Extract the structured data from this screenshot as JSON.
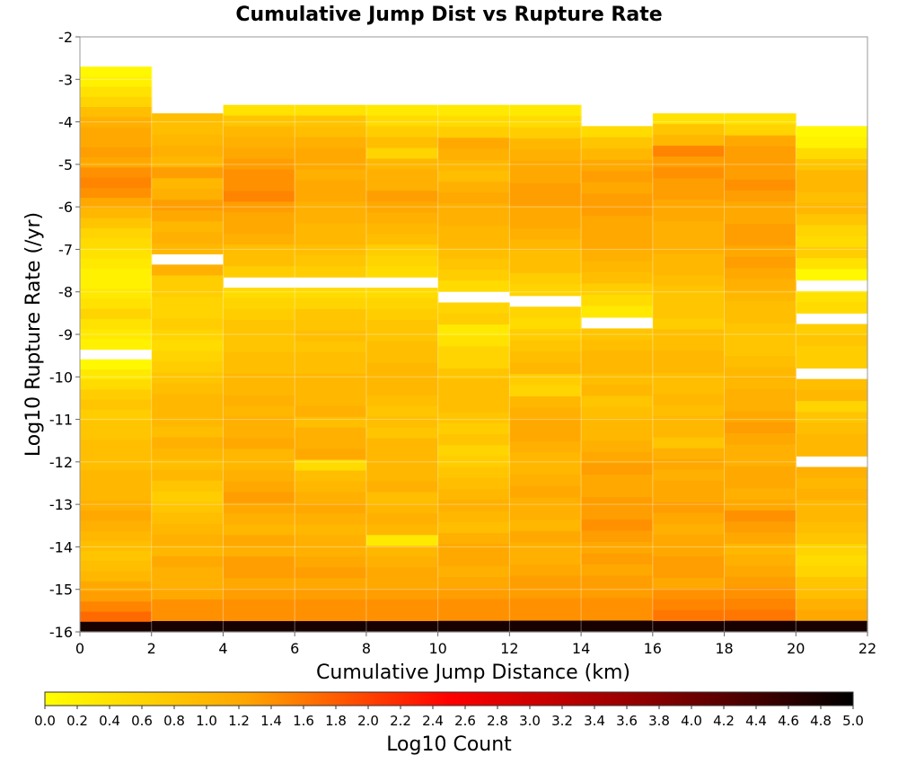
{
  "chart_data": {
    "type": "heatmap",
    "title": "Cumulative Jump Dist vs Rupture Rate",
    "xlabel": "Cumulative Jump Distance (km)",
    "ylabel": "Log10 Rupture Rate (/yr)",
    "xlim": [
      0,
      22
    ],
    "ylim": [
      -16,
      -2
    ],
    "x_ticks": [
      "0",
      "2",
      "4",
      "6",
      "8",
      "10",
      "12",
      "14",
      "16",
      "18",
      "20",
      "22"
    ],
    "y_ticks": [
      "-2",
      "-3",
      "-4",
      "-5",
      "-6",
      "-7",
      "-8",
      "-9",
      "-10",
      "-11",
      "-12",
      "-13",
      "-14",
      "-15",
      "-16"
    ],
    "x_bin_edges": [
      0,
      2,
      4,
      6,
      8,
      10,
      12,
      14,
      16,
      18,
      20,
      22
    ],
    "y_bin_width": 0.28,
    "grid": true,
    "colorbar": {
      "label": "Log10 Count",
      "range": [
        0,
        5
      ],
      "ticks": [
        "0.0",
        "0.2",
        "0.4",
        "0.6",
        "0.8",
        "1.0",
        "1.2",
        "1.4",
        "1.6",
        "1.8",
        "2.0",
        "2.2",
        "2.4",
        "2.6",
        "2.8",
        "3.0",
        "3.2",
        "3.4",
        "3.6",
        "3.8",
        "4.0",
        "4.2",
        "4.4",
        "4.6",
        "4.8",
        "5.0"
      ],
      "colors": [
        "#ffff00",
        "#ffa500",
        "#ff0000",
        "#8b0000",
        "#000000"
      ],
      "placement": "bottom"
    },
    "columns": [
      {
        "x_range": [
          0,
          2
        ],
        "y_top": -2.7,
        "empty_bins_y": [
          -9.4
        ],
        "values": [
          0.1,
          0.2,
          0.4,
          0.6,
          0.9,
          1.1,
          1.2,
          1.2,
          1.3,
          1.2,
          1.4,
          1.5,
          1.4,
          1.2,
          1.0,
          0.8,
          0.6,
          0.5,
          0.4,
          0.3,
          0.2,
          0.2,
          0.3,
          0.4,
          0.6,
          0.4,
          0.3,
          0.2,
          0.2,
          0.1,
          0.3,
          0.5,
          0.7,
          0.8,
          0.7,
          0.8,
          0.8,
          0.9,
          0.9,
          0.9,
          1.0,
          1.0,
          1.0,
          1.1,
          1.2,
          1.1,
          1.0,
          0.9,
          0.8,
          0.9,
          1.0,
          1.2,
          1.3,
          1.5,
          1.7,
          4.8
        ]
      },
      {
        "x_range": [
          2,
          4
        ],
        "y_top": -3.8,
        "empty_bins_y": [
          -7.2
        ],
        "values": [
          0.9,
          0.9,
          1.0,
          1.1,
          1.0,
          1.3,
          1.0,
          1.1,
          1.3,
          1.2,
          1.0,
          1.1,
          1.0,
          1.0,
          1.1,
          0.7,
          0.7,
          0.6,
          0.6,
          0.7,
          0.6,
          0.5,
          0.6,
          0.7,
          0.8,
          0.9,
          1.0,
          1.0,
          1.0,
          0.9,
          1.1,
          1.0,
          0.9,
          1.0,
          0.8,
          0.7,
          0.8,
          0.9,
          1.0,
          1.1,
          1.0,
          1.2,
          1.1,
          1.1,
          1.2,
          1.4,
          1.4,
          4.8
        ]
      },
      {
        "x_range": [
          4,
          6
        ],
        "y_top": -3.6,
        "empty_bins_y": [
          -7.8
        ],
        "values": [
          0.4,
          0.8,
          1.0,
          1.1,
          1.2,
          1.3,
          1.4,
          1.4,
          1.5,
          1.3,
          1.2,
          1.2,
          1.1,
          0.9,
          0.9,
          0.7,
          0.6,
          0.5,
          0.6,
          0.7,
          0.8,
          0.8,
          0.8,
          0.9,
          0.9,
          1.0,
          1.0,
          1.1,
          1.0,
          1.1,
          1.1,
          1.2,
          1.0,
          1.0,
          1.1,
          1.2,
          1.3,
          1.2,
          1.1,
          1.0,
          1.2,
          1.1,
          1.3,
          1.3,
          1.2,
          1.3,
          1.4,
          1.4,
          4.8
        ]
      },
      {
        "x_range": [
          6,
          8
        ],
        "y_top": -3.6,
        "empty_bins_y": [
          -7.8
        ],
        "values": [
          0.4,
          0.8,
          0.9,
          1.1,
          1.2,
          1.2,
          1.1,
          1.2,
          1.2,
          1.1,
          1.1,
          1.0,
          1.0,
          0.9,
          0.8,
          0.7,
          0.6,
          0.5,
          0.6,
          0.8,
          0.8,
          0.9,
          0.8,
          0.9,
          0.9,
          1.0,
          1.0,
          1.0,
          1.1,
          0.9,
          1.1,
          1.1,
          1.2,
          0.5,
          0.9,
          1.0,
          1.1,
          1.2,
          1.1,
          1.0,
          1.1,
          1.1,
          1.2,
          1.3,
          1.2,
          1.3,
          1.4,
          1.4,
          4.8
        ]
      },
      {
        "x_range": [
          8,
          10
        ],
        "y_top": -3.6,
        "empty_bins_y": [
          -7.8
        ],
        "values": [
          0.3,
          0.5,
          0.7,
          0.9,
          0.6,
          1.0,
          1.1,
          1.1,
          1.3,
          1.2,
          1.1,
          1.0,
          0.9,
          0.7,
          0.6,
          0.5,
          0.1,
          0.5,
          0.6,
          0.7,
          0.8,
          0.8,
          0.9,
          0.9,
          1.0,
          1.0,
          1.0,
          0.9,
          0.8,
          0.9,
          0.8,
          1.0,
          1.0,
          1.0,
          1.0,
          1.1,
          0.9,
          1.0,
          1.1,
          1.0,
          0.3,
          1.0,
          1.1,
          1.2,
          1.2,
          1.3,
          1.4,
          1.4,
          4.8
        ]
      },
      {
        "x_range": [
          10,
          12
        ],
        "y_top": -3.6,
        "empty_bins_y": [
          -8.1
        ],
        "values": [
          0.3,
          0.5,
          0.7,
          1.2,
          1.1,
          1.0,
          0.9,
          1.1,
          1.2,
          1.1,
          1.1,
          1.0,
          1.0,
          0.9,
          0.8,
          0.7,
          0.5,
          0.4,
          0.6,
          0.7,
          0.3,
          0.4,
          0.6,
          0.6,
          0.8,
          0.9,
          0.9,
          0.9,
          0.8,
          0.7,
          0.8,
          0.6,
          0.7,
          0.8,
          0.9,
          1.0,
          1.1,
          1.0,
          0.9,
          1.1,
          1.2,
          1.2,
          1.1,
          1.2,
          1.3,
          1.4,
          1.4,
          4.8
        ]
      },
      {
        "x_range": [
          12,
          14
        ],
        "y_top": -3.6,
        "empty_bins_y": [
          -8.3
        ],
        "values": [
          0.3,
          0.5,
          0.7,
          1.0,
          1.1,
          1.2,
          1.2,
          1.3,
          1.3,
          1.2,
          1.2,
          1.1,
          1.0,
          0.9,
          0.9,
          0.7,
          0.6,
          0.5,
          0.6,
          0.5,
          0.7,
          0.8,
          0.9,
          1.0,
          0.7,
          0.6,
          1.0,
          1.1,
          1.2,
          1.2,
          1.1,
          1.0,
          1.0,
          1.1,
          1.2,
          1.1,
          1.1,
          1.0,
          1.2,
          1.1,
          1.1,
          1.2,
          1.3,
          1.3,
          1.4,
          1.4,
          4.8
        ]
      },
      {
        "x_range": [
          14,
          16
        ],
        "y_top": -4.1,
        "empty_bins_y": [
          -8.6
        ],
        "values": [
          0.5,
          0.8,
          1.0,
          1.2,
          1.3,
          1.2,
          1.3,
          1.3,
          1.2,
          1.2,
          1.2,
          1.1,
          1.0,
          0.9,
          0.7,
          0.5,
          0.3,
          0.5,
          0.8,
          0.9,
          1.0,
          1.0,
          0.9,
          1.0,
          0.8,
          0.9,
          1.0,
          1.0,
          1.1,
          1.2,
          1.3,
          1.2,
          1.2,
          1.3,
          1.3,
          1.4,
          1.3,
          1.2,
          1.3,
          1.2,
          1.3,
          1.3,
          1.4,
          1.4,
          4.8
        ]
      },
      {
        "x_range": [
          16,
          18
        ],
        "y_top": -3.8,
        "empty_bins_y": [],
        "values": [
          0.4,
          0.8,
          1.0,
          1.5,
          1.3,
          1.4,
          1.3,
          1.3,
          1.2,
          1.2,
          1.1,
          1.1,
          1.1,
          1.0,
          1.0,
          0.9,
          0.8,
          0.8,
          0.8,
          0.7,
          0.9,
          0.9,
          1.0,
          1.0,
          0.9,
          0.9,
          1.0,
          0.9,
          1.0,
          1.0,
          0.8,
          1.1,
          1.2,
          1.1,
          1.2,
          1.2,
          1.3,
          1.2,
          1.1,
          1.2,
          1.2,
          1.3,
          1.3,
          1.2,
          1.4,
          1.5,
          1.6,
          4.8
        ]
      },
      {
        "x_range": [
          18,
          20
        ],
        "y_top": -3.8,
        "empty_bins_y": [],
        "values": [
          0.4,
          0.6,
          1.2,
          1.3,
          1.3,
          1.3,
          1.4,
          1.3,
          1.2,
          1.2,
          1.3,
          1.3,
          1.2,
          1.3,
          1.2,
          1.1,
          1.0,
          0.9,
          0.9,
          0.8,
          0.8,
          0.8,
          0.9,
          1.0,
          1.0,
          1.1,
          1.1,
          1.2,
          1.3,
          1.2,
          1.1,
          1.1,
          1.2,
          1.2,
          1.1,
          1.2,
          1.4,
          1.3,
          1.2,
          1.0,
          1.1,
          1.2,
          1.3,
          1.4,
          1.5,
          1.6,
          4.8
        ]
      },
      {
        "x_range": [
          20,
          22
        ],
        "y_top": -4.1,
        "empty_bins_y": [
          -7.8,
          -8.6,
          -9.8,
          -12.0
        ],
        "values": [
          0.1,
          0.2,
          0.5,
          0.8,
          1.0,
          1.0,
          0.9,
          1.0,
          0.8,
          0.6,
          0.5,
          0.7,
          0.4,
          0.1,
          0.1,
          0.4,
          0.5,
          0.6,
          0.7,
          0.8,
          0.7,
          0.7,
          0.8,
          0.9,
          1.0,
          0.6,
          0.8,
          0.9,
          1.0,
          1.0,
          1.1,
          1.1,
          1.0,
          1.1,
          1.0,
          1.0,
          0.9,
          0.8,
          0.6,
          0.5,
          0.6,
          0.8,
          0.9,
          1.1,
          1.2,
          4.8
        ]
      }
    ]
  }
}
